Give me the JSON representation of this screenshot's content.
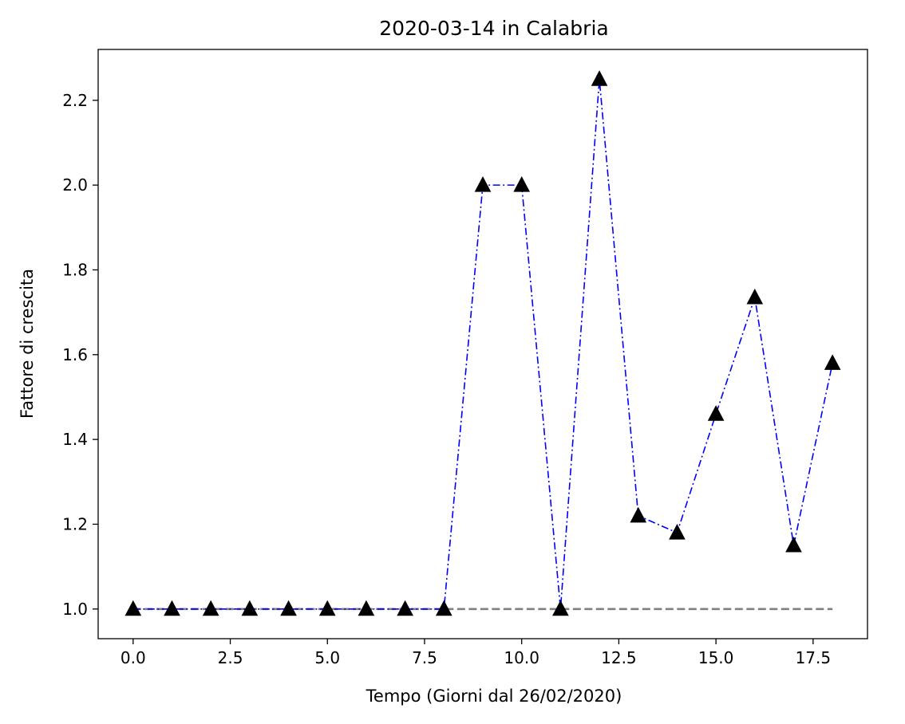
{
  "chart_data": {
    "type": "line",
    "title": "2020-03-14 in Calabria",
    "xlabel": "Tempo (Giorni dal 26/02/2020)",
    "ylabel": "Fattore di crescita",
    "xlim": [
      -0.9,
      18.9
    ],
    "ylim": [
      0.93,
      2.32
    ],
    "x_ticks": [
      0.0,
      2.5,
      5.0,
      7.5,
      10.0,
      12.5,
      15.0,
      17.5
    ],
    "x_tick_labels": [
      "0.0",
      "2.5",
      "5.0",
      "7.5",
      "10.0",
      "12.5",
      "15.0",
      "17.5"
    ],
    "y_ticks": [
      1.0,
      1.2,
      1.4,
      1.6,
      1.8,
      2.0,
      2.2
    ],
    "y_tick_labels": [
      "1.0",
      "1.2",
      "1.4",
      "1.6",
      "1.8",
      "2.0",
      "2.2"
    ],
    "grid": false,
    "series": [
      {
        "style": "dashdot-line-triangle-markers",
        "color": "#0000ff",
        "marker_color": "#000000",
        "x": [
          0,
          1,
          2,
          3,
          4,
          5,
          6,
          7,
          8,
          9,
          10,
          11,
          12,
          13,
          14,
          15,
          16,
          17,
          18
        ],
        "values": [
          1.0,
          1.0,
          1.0,
          1.0,
          1.0,
          1.0,
          1.0,
          1.0,
          1.0,
          2.0,
          2.0,
          1.0,
          2.25,
          1.22,
          1.18,
          1.46,
          1.735,
          1.15,
          1.58
        ]
      }
    ],
    "reference_line": {
      "style": "dashed",
      "color": "#808080",
      "y": 1.0,
      "x_range": [
        0,
        18
      ]
    }
  }
}
